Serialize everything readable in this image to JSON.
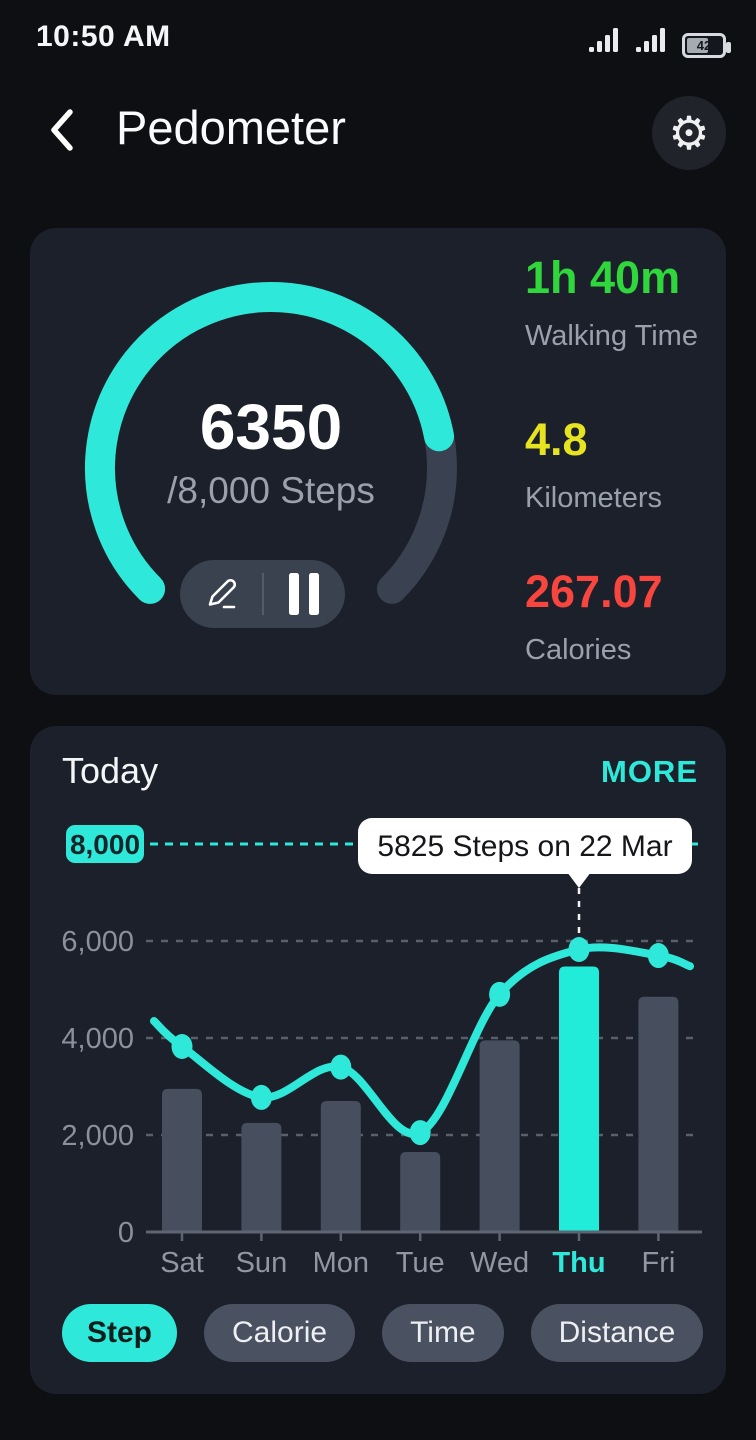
{
  "status_bar": {
    "time": "10:50 AM",
    "battery_level": "42"
  },
  "header": {
    "title": "Pedometer"
  },
  "summary": {
    "steps_value": "6350",
    "steps_goal_label": "/8,000 Steps",
    "current_steps": 6350,
    "goal_steps": 8000,
    "stats": [
      {
        "value": "1h 40m",
        "label": "Walking Time",
        "color": "#2fd73c"
      },
      {
        "value": "4.8",
        "label": "Kilometers",
        "color": "#e6e321"
      },
      {
        "value": "267.07",
        "label": "Calories",
        "color": "#f8463e"
      }
    ]
  },
  "today_section": {
    "title": "Today",
    "more_label": "MORE",
    "tabs": [
      {
        "label": "Step",
        "active": true
      },
      {
        "label": "Calorie",
        "active": false
      },
      {
        "label": "Time",
        "active": false
      },
      {
        "label": "Distance",
        "active": false
      }
    ]
  },
  "chart_data": {
    "type": "combo-bar-line",
    "title": "Today",
    "categories": [
      "Sat",
      "Sun",
      "Mon",
      "Tue",
      "Wed",
      "Thu",
      "Fri"
    ],
    "series": [
      {
        "name": "daily-steps-bars",
        "type": "bar",
        "values": [
          2950,
          2250,
          2700,
          1650,
          3950,
          5475,
          4850
        ]
      },
      {
        "name": "steps-trend-line",
        "type": "line",
        "values": [
          3825,
          2775,
          3400,
          2050,
          4900,
          5825,
          5700
        ]
      }
    ],
    "highlight_index": 5,
    "highlight_category": "Thu",
    "ylim": [
      0,
      8000
    ],
    "yticks": [
      0,
      2000,
      4000,
      6000
    ],
    "ytick_labels": [
      "0",
      "2,000",
      "4,000",
      "6,000"
    ],
    "goal_value": 8000,
    "goal_badge_label": "8,000",
    "grid": "dashed-horizontal",
    "line_edge_start_value": 4350,
    "line_edge_end_value": 5480,
    "tooltip": {
      "text": "5825 Steps on  22 Mar",
      "value": 5825,
      "date": "22 Mar",
      "category": "Thu"
    }
  },
  "colors": {
    "accent_cyan": "#2ee9d9",
    "page_bg": "#0d0f13",
    "card_bg": "#1b202a",
    "bar_gray": "#474f5e",
    "gauge_track": "#3a4150",
    "walking_green": "#2fd73c",
    "distance_yellow": "#e6e321",
    "calories_red": "#f8463e"
  }
}
